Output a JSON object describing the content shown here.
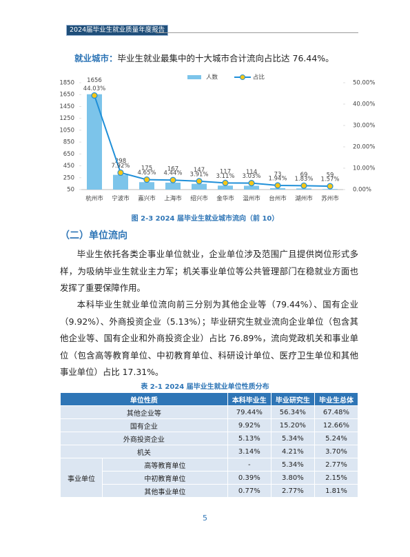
{
  "header": {
    "title": "2024届毕业生就业质量年度报告"
  },
  "intro": {
    "label": "就业城市：",
    "text": "毕业生就业最集中的十大城市合计流向占比达 76.44%。"
  },
  "chart_data": {
    "type": "bar",
    "categories": [
      "杭州市",
      "宁波市",
      "嘉兴市",
      "上海市",
      "绍兴市",
      "金华市",
      "温州市",
      "台州市",
      "湖州市",
      "苏州市"
    ],
    "series": [
      {
        "name": "人数",
        "type": "bar",
        "color": "#7cc4ea",
        "values": [
          1656,
          298,
          175,
          167,
          147,
          117,
          114,
          73,
          69,
          59
        ]
      },
      {
        "name": "占比",
        "type": "line",
        "axis": "y2",
        "color": "#1f8fd8",
        "marker_color": "#f5c518",
        "values": [
          44.03,
          7.92,
          4.65,
          4.44,
          3.91,
          3.11,
          3.03,
          1.94,
          1.83,
          1.57
        ],
        "value_labels": [
          "44.03%",
          "7.92%",
          "4.65%",
          "4.44%",
          "3.91%",
          "3.11%",
          "3.03%",
          "1.94%",
          "1.83%",
          "1.57%"
        ]
      }
    ],
    "ylim": [
      50,
      1850
    ],
    "yticks": [
      50,
      250,
      450,
      650,
      850,
      1050,
      1250,
      1450,
      1650,
      1850
    ],
    "y2lim": [
      0,
      50
    ],
    "y2ticks": [
      {
        "value": 0,
        "label": "0.00%"
      },
      {
        "value": 10,
        "label": "10.00%"
      },
      {
        "value": 20,
        "label": "20.00%"
      },
      {
        "value": 30,
        "label": "30.00%"
      },
      {
        "value": 40,
        "label": "40.00%"
      },
      {
        "value": 50,
        "label": "50.00%"
      }
    ],
    "legend": "top"
  },
  "figure_caption": "图 2-3 2024 届毕业生就业城市流向（前 10）",
  "section_heading": "（二）单位流向",
  "paragraphs": [
    "毕业生依托各类企事业单位就业，企业单位涉及范围广且提供岗位形式多样，为吸纳毕业生就业主力军；机关事业单位等公共管理部门在稳就业方面也发挥了重要保障作用。",
    "本科毕业生就业单位流向前三分别为其他企业等（79.44%）、国有企业（9.92%）、外商投资企业（5.13%）；毕业研究生就业流向企业单位（包含其他企业等、国有企业和外商投资企业）占比 76.89%，流向党政机关和事业单位（包含高等教育单位、中初教育单位、科研设计单位、医疗卫生单位和其他事业单位）占比 17.31%。"
  ],
  "table": {
    "title": "表 2-1 2024 届毕业生就业单位性质分布",
    "columns": [
      "单位性质",
      "本科毕业生",
      "毕业研究生",
      "毕业生总体"
    ],
    "rows": [
      [
        "其他企业等",
        "79.44%",
        "56.34%",
        "67.48%"
      ],
      [
        "国有企业",
        "9.92%",
        "15.20%",
        "12.66%"
      ],
      [
        "外商投资企业",
        "5.13%",
        "5.34%",
        "5.24%"
      ],
      [
        "机关",
        "3.14%",
        "4.21%",
        "3.70%"
      ]
    ],
    "group": {
      "label": "事业单位",
      "rows": [
        [
          "高等教育单位",
          "-",
          "5.34%",
          "2.77%"
        ],
        [
          "中初教育单位",
          "0.39%",
          "3.80%",
          "2.15%"
        ],
        [
          "其他事业单位",
          "0.77%",
          "2.77%",
          "1.81%"
        ]
      ]
    }
  },
  "page_number": "5"
}
